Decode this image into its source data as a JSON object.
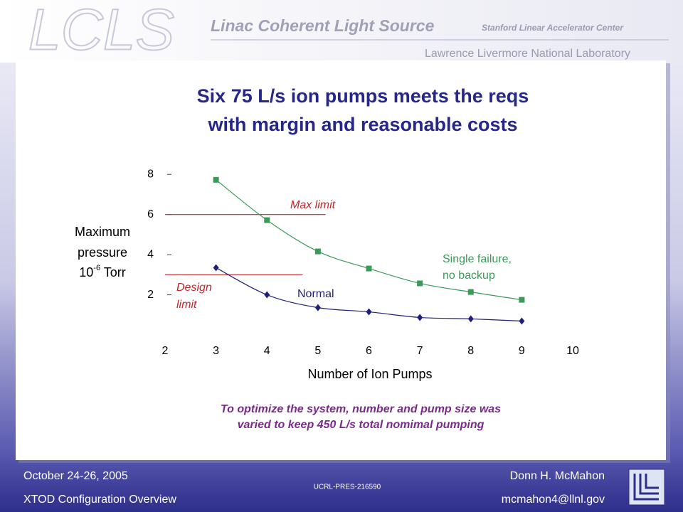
{
  "header": {
    "logo": "LCLS",
    "project": "Linac Coherent Light Source",
    "lab1": "Stanford Linear Accelerator Center",
    "lab2": "Lawrence Livermore National Laboratory"
  },
  "chart_data": {
    "type": "line",
    "title": [
      "Six 75 L/s ion pumps meets the reqs",
      "with margin and reasonable costs"
    ],
    "x_label": "Number of Ion Pumps",
    "y_label": [
      "Maximum",
      "pressure",
      "10",
      "-6",
      " Torr"
    ],
    "x": [
      3,
      4,
      5,
      6,
      7,
      8,
      9
    ],
    "xlim": [
      2,
      10
    ],
    "xticks": [
      2,
      3,
      4,
      5,
      6,
      7,
      8,
      9,
      10
    ],
    "ylim": [
      0,
      9
    ],
    "yticks": [
      2,
      4,
      6,
      8
    ],
    "series": [
      {
        "name": [
          "Single failure,",
          "no backup"
        ],
        "color": "#3a9a5a",
        "marker": "square",
        "values": [
          7.73,
          5.72,
          4.16,
          3.31,
          2.57,
          2.14,
          1.75
        ]
      },
      {
        "name": [
          "Normal"
        ],
        "color": "#1f1f7a",
        "marker": "diamond",
        "values": [
          3.35,
          2.0,
          1.36,
          1.15,
          0.87,
          0.8,
          0.69
        ]
      }
    ],
    "reference_lines": [
      {
        "label": [
          "Max limit"
        ],
        "value": 6,
        "x_end": 5.15,
        "color": "#c0282a"
      },
      {
        "label": [
          "Design",
          "limit"
        ],
        "value": 3,
        "x_end": 4.7,
        "color": "#c0282a"
      }
    ],
    "caption": [
      "To optimize the system, number and pump size was",
      "varied to keep 450 L/s total nomimal pumping"
    ]
  },
  "footer": {
    "date": "October 24-26, 2005",
    "event": "XTOD Configuration Overview",
    "report": "UCRL-PRES-216590",
    "author": "Donn H. McMahon",
    "email": "mcmahon4@llnl.gov"
  }
}
